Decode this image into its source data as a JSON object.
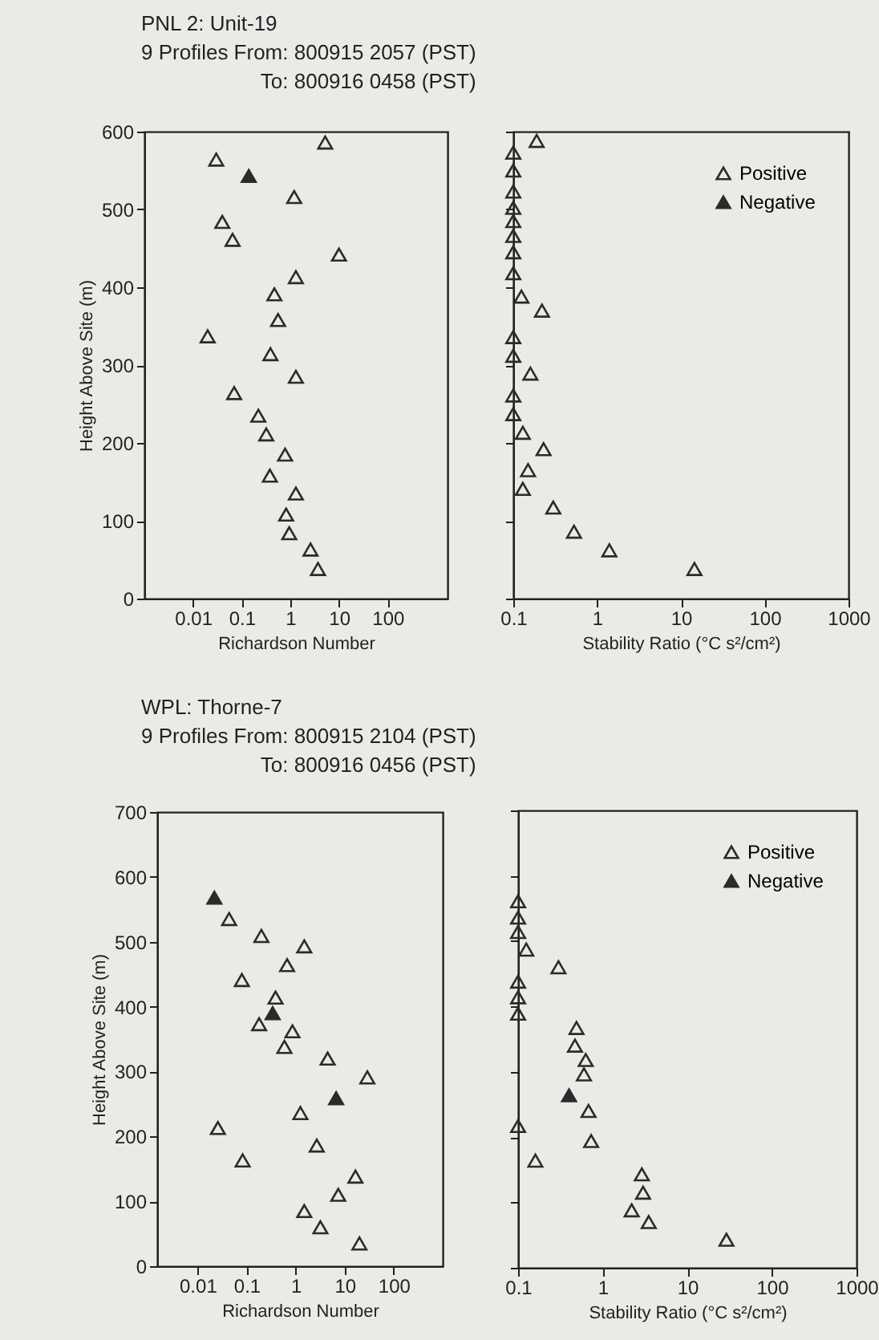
{
  "chart_data": [
    {
      "type": "scatter",
      "title": "PNL 2: Unit-19",
      "subtitle": "9 Profiles From: 800915 2057 (PST)\nTo: 800916 0458 (PST)",
      "xlabel": "Richardson Number",
      "ylabel": "Height Above Site (m)",
      "log": "x",
      "xlim": [
        0.001,
        1700
      ],
      "xticks": [
        0.01,
        0.1,
        1,
        10,
        100
      ],
      "ylim": [
        0,
        600
      ],
      "yticks": [
        0,
        100,
        200,
        300,
        400,
        500,
        600
      ],
      "grid": false,
      "marker": "triangle",
      "series": [
        {
          "color": "#2b2b2b",
          "x": [
            5.2,
            0.03,
            1.2,
            0.04,
            0.065,
            10,
            1.3,
            0.47,
            0.56,
            0.02,
            0.39,
            1.3,
            0.07,
            0.22,
            0.32,
            0.78,
            0.38,
            1.3,
            0.82,
            0.95,
            2.6,
            3.7
          ],
          "values": [
            586,
            564,
            516,
            484,
            461,
            442,
            413,
            391,
            358,
            337,
            314,
            285,
            264,
            235,
            211,
            185,
            158,
            135,
            108,
            84,
            63,
            38
          ]
        },
        {
          "color": "#2b2b2b",
          "x": [
            0.14
          ],
          "values": [
            543
          ]
        }
      ]
    },
    {
      "type": "scatter",
      "xlabel": "Stability Ratio (°C s²/cm²)",
      "log": "x",
      "xlim": [
        0.1,
        1000
      ],
      "xticks": [
        0.1,
        1,
        10,
        100,
        1000
      ],
      "ylim": [
        0,
        600
      ],
      "yticks": [
        0,
        100,
        200,
        300,
        400,
        500,
        600
      ],
      "tick_labels": "x",
      "grid": false,
      "marker": "triangle",
      "legend": "top right",
      "series": [
        {
          "name": "Positive",
          "color": "#2b2b2b",
          "x": [
            0.19,
            0.1,
            0.1,
            0.1,
            0.1,
            0.1,
            0.1,
            0.1,
            0.1,
            0.125,
            0.22,
            0.1,
            0.1,
            0.16,
            0.1,
            0.1,
            0.13,
            0.23,
            0.15,
            0.13,
            0.3,
            0.53,
            1.4,
            14.5
          ],
          "values": [
            588,
            573,
            550,
            523,
            502,
            485,
            466,
            445,
            418,
            388,
            370,
            336,
            312,
            289,
            261,
            237,
            213,
            192,
            165,
            141,
            117,
            86,
            62,
            38
          ]
        },
        {
          "name": "Negative",
          "color": "#2b2b2b"
        }
      ]
    },
    {
      "type": "scatter",
      "title": "WPL: Thorne-7",
      "subtitle": "9 Profiles From: 800915 2104 (PST)\nTo: 800916 0456 (PST)",
      "xlabel": "Richardson Number",
      "ylabel": "Height Above Site (m)",
      "log": "x",
      "xlim": [
        0.0015,
        1000
      ],
      "xticks": [
        0.01,
        0.1,
        1,
        10,
        100
      ],
      "ylim": [
        0,
        700
      ],
      "yticks": [
        0,
        100,
        200,
        300,
        400,
        500,
        600,
        700
      ],
      "grid": false,
      "marker": "triangle",
      "series": [
        {
          "color": "#2b2b2b",
          "x": [
            0.044,
            0.2,
            1.5,
            0.67,
            0.08,
            0.39,
            0.18,
            0.86,
            0.59,
            4.5,
            29,
            1.25,
            0.026,
            2.7,
            0.083,
            16.6,
            7.4,
            1.5,
            3.2,
            20
          ],
          "values": [
            535,
            509,
            493,
            464,
            441,
            414,
            373,
            362,
            338,
            320,
            291,
            236,
            213,
            186,
            163,
            138,
            110,
            85,
            60,
            35
          ]
        },
        {
          "color": "#2b2b2b",
          "x": [
            0.022,
            0.34,
            6.7
          ],
          "values": [
            568,
            390,
            259
          ]
        }
      ]
    },
    {
      "type": "scatter",
      "xlabel": "Stability Ratio (°C s²/cm²)",
      "log": "x",
      "xlim": [
        0.1,
        1000
      ],
      "xticks": [
        0.1,
        1,
        10,
        100,
        1000
      ],
      "ylim": [
        0,
        700
      ],
      "yticks": [
        0,
        100,
        200,
        300,
        400,
        500,
        600,
        700
      ],
      "tick_labels": "x",
      "grid": false,
      "marker": "triangle",
      "legend": "top right",
      "series": [
        {
          "name": "Positive",
          "color": "#2b2b2b",
          "x": [
            0.1,
            0.1,
            0.1,
            0.125,
            0.3,
            0.1,
            0.1,
            0.1,
            0.49,
            0.47,
            0.63,
            0.6,
            0.68,
            0.1,
            0.73,
            0.16,
            2.9,
            3.0,
            2.2,
            3.5,
            29
          ],
          "values": [
            561,
            536,
            514,
            487,
            460,
            438,
            414,
            389,
            367,
            340,
            318,
            296,
            240,
            217,
            194,
            164,
            143,
            115,
            88,
            70,
            43
          ]
        },
        {
          "name": "Negative",
          "color": "#2b2b2b",
          "x": [
            0.4
          ],
          "values": [
            264
          ]
        }
      ]
    }
  ]
}
